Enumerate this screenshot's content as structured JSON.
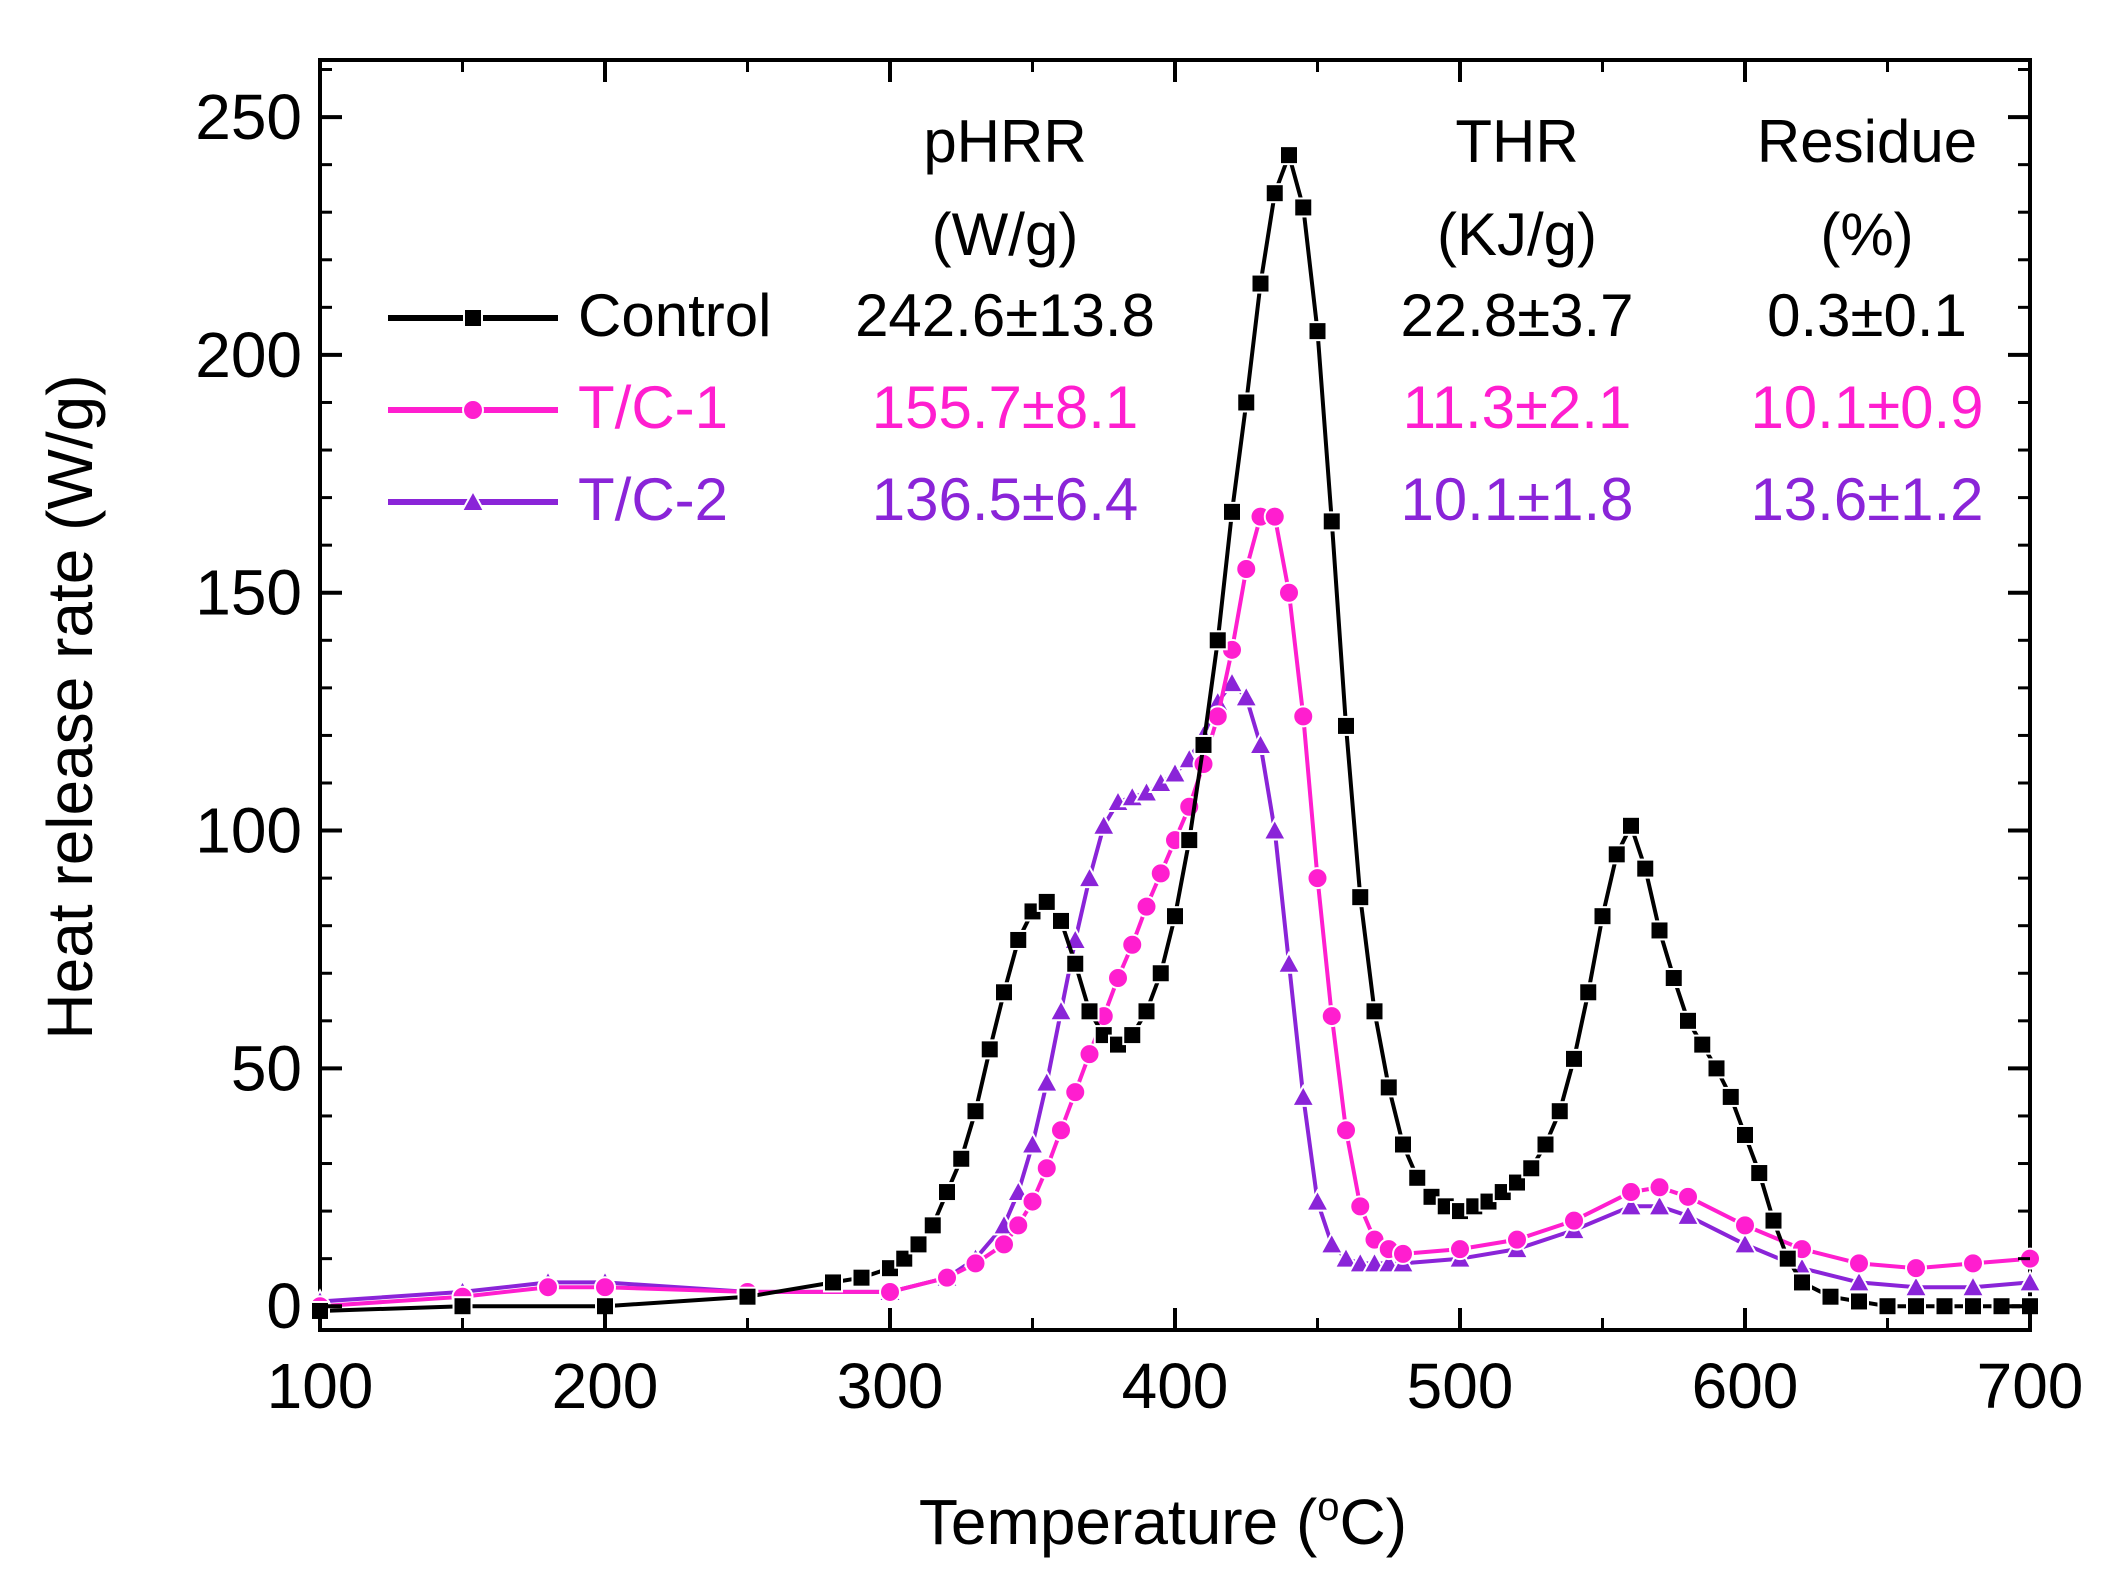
{
  "chart_data": {
    "type": "line",
    "title": "",
    "xlabel_main": "Temperature (",
    "xlabel_sup": "o",
    "xlabel_end": "C)",
    "ylabel": "Heat release rate (W/g)",
    "xlim": [
      100,
      700
    ],
    "ylim": [
      -5,
      262
    ],
    "xticks": [
      100,
      200,
      300,
      400,
      500,
      600,
      700
    ],
    "yticks": [
      0,
      50,
      100,
      150,
      200,
      250
    ],
    "legend_position": "top-left",
    "table_headers": [
      {
        "line1": "pHRR",
        "line2": "(W/g)"
      },
      {
        "line1": "THR",
        "line2": "(KJ/g)"
      },
      {
        "line1": "Residue",
        "line2": "(%)"
      }
    ],
    "series": [
      {
        "name": "Control",
        "color": "#000000",
        "marker": "square",
        "pHRR": "242.6±13.8",
        "THR": "22.8±3.7",
        "Residue": "0.3±0.1",
        "x": [
          100,
          150,
          200,
          250,
          280,
          290,
          300,
          305,
          310,
          315,
          320,
          325,
          330,
          335,
          340,
          345,
          350,
          355,
          360,
          365,
          370,
          375,
          380,
          385,
          390,
          395,
          400,
          405,
          410,
          415,
          420,
          425,
          430,
          435,
          440,
          445,
          450,
          455,
          460,
          465,
          470,
          475,
          480,
          485,
          490,
          495,
          500,
          505,
          510,
          515,
          520,
          525,
          530,
          535,
          540,
          545,
          550,
          555,
          560,
          565,
          570,
          575,
          580,
          585,
          590,
          595,
          600,
          605,
          610,
          615,
          620,
          630,
          640,
          650,
          660,
          670,
          680,
          690,
          700
        ],
        "y": [
          -1,
          0,
          0,
          2,
          5,
          6,
          8,
          10,
          13,
          17,
          24,
          31,
          41,
          54,
          66,
          77,
          83,
          85,
          81,
          72,
          62,
          57,
          55,
          57,
          62,
          70,
          82,
          98,
          118,
          140,
          167,
          190,
          215,
          234,
          242,
          231,
          205,
          165,
          122,
          86,
          62,
          46,
          34,
          27,
          23,
          21,
          20,
          21,
          22,
          24,
          26,
          29,
          34,
          41,
          52,
          66,
          82,
          95,
          101,
          92,
          79,
          69,
          60,
          55,
          50,
          44,
          36,
          28,
          18,
          10,
          5,
          2,
          1,
          0,
          0,
          0,
          0,
          0,
          0
        ]
      },
      {
        "name": "T/C-1",
        "color": "#ff1ecf",
        "marker": "circle",
        "pHRR": "155.7±8.1",
        "THR": "11.3±2.1",
        "Residue": "10.1±0.9",
        "x": [
          100,
          150,
          180,
          200,
          250,
          300,
          320,
          330,
          340,
          345,
          350,
          355,
          360,
          365,
          370,
          375,
          380,
          385,
          390,
          395,
          400,
          405,
          410,
          415,
          420,
          425,
          430,
          435,
          440,
          445,
          450,
          455,
          460,
          465,
          470,
          475,
          480,
          500,
          520,
          540,
          560,
          570,
          580,
          600,
          620,
          640,
          660,
          680,
          700
        ],
        "y": [
          0,
          2,
          4,
          4,
          3,
          3,
          6,
          9,
          13,
          17,
          22,
          29,
          37,
          45,
          53,
          61,
          69,
          76,
          84,
          91,
          98,
          105,
          114,
          124,
          138,
          155,
          166,
          166,
          150,
          124,
          90,
          61,
          37,
          21,
          14,
          12,
          11,
          12,
          14,
          18,
          24,
          25,
          23,
          17,
          12,
          9,
          8,
          9,
          10
        ]
      },
      {
        "name": "T/C-2",
        "color": "#8a24d8",
        "marker": "triangle",
        "pHRR": "136.5±6.4",
        "THR": "10.1±1.8",
        "Residue": "13.6±1.2",
        "x": [
          100,
          150,
          180,
          200,
          250,
          300,
          320,
          330,
          340,
          345,
          350,
          355,
          360,
          365,
          370,
          375,
          380,
          385,
          390,
          395,
          400,
          405,
          410,
          415,
          420,
          425,
          430,
          435,
          440,
          445,
          450,
          455,
          460,
          465,
          470,
          475,
          480,
          500,
          520,
          540,
          560,
          570,
          580,
          600,
          620,
          640,
          660,
          680,
          700
        ],
        "y": [
          1,
          3,
          5,
          5,
          3,
          3,
          6,
          10,
          17,
          24,
          34,
          47,
          62,
          77,
          90,
          101,
          106,
          107,
          108,
          110,
          112,
          115,
          120,
          127,
          131,
          128,
          118,
          100,
          72,
          44,
          22,
          13,
          10,
          9,
          9,
          9,
          9,
          10,
          12,
          16,
          21,
          21,
          19,
          13,
          8,
          5,
          4,
          4,
          5
        ]
      }
    ]
  }
}
